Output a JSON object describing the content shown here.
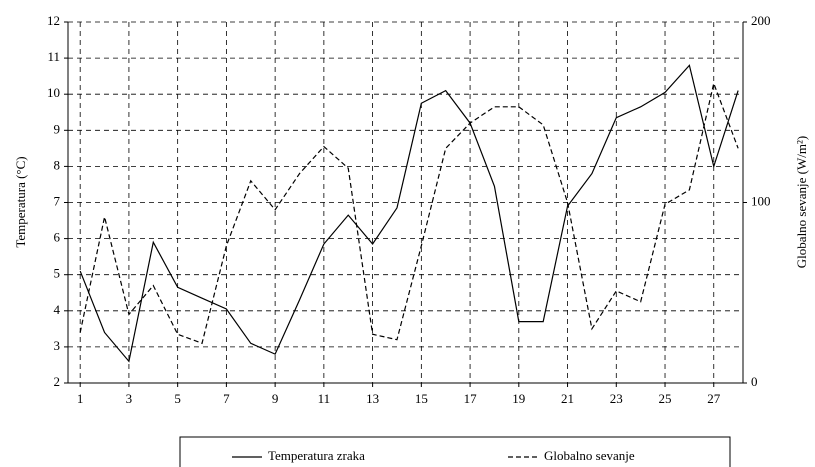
{
  "chart_data": {
    "type": "line",
    "y_label": "Temperatura (°C)",
    "y2_label": "Globalno sevanje (W/m²)",
    "x": [
      1,
      2,
      3,
      4,
      5,
      6,
      7,
      8,
      9,
      10,
      11,
      12,
      13,
      14,
      15,
      16,
      17,
      18,
      19,
      20,
      21,
      22,
      23,
      24,
      25,
      26,
      27,
      28
    ],
    "xlim": [
      0.5,
      28.2
    ],
    "xticks": [
      1,
      3,
      5,
      7,
      9,
      11,
      13,
      15,
      17,
      19,
      21,
      23,
      25,
      27
    ],
    "ylim": [
      2,
      12
    ],
    "yticks": [
      2,
      3,
      4,
      5,
      6,
      7,
      8,
      9,
      10,
      11,
      12
    ],
    "y2lim": [
      0,
      200
    ],
    "y2ticks": [
      0,
      100,
      200
    ],
    "grid": true,
    "legend": "bottom",
    "series": [
      {
        "name": "Temperatura zraka",
        "color": "#000000",
        "dash": "solid",
        "values": [
          5.1,
          3.4,
          2.6,
          5.9,
          4.65,
          4.35,
          4.05,
          3.1,
          2.8,
          4.3,
          5.85,
          6.65,
          5.85,
          6.85,
          9.75,
          10.1,
          9.2,
          7.45,
          3.7,
          3.7,
          6.9,
          7.8,
          9.35,
          9.65,
          10.05,
          10.8,
          8.0,
          10.1
        ]
      },
      {
        "name": "Globalno sevanje",
        "color": "#000000",
        "dash": "dashed",
        "axis": "y2",
        "values": [
          28,
          92,
          38,
          54,
          27,
          22,
          76,
          112,
          96,
          116,
          131,
          119,
          27,
          24,
          76,
          130,
          144,
          153,
          153,
          143,
          100,
          30,
          51,
          45,
          99,
          107,
          166,
          130
        ]
      }
    ]
  }
}
